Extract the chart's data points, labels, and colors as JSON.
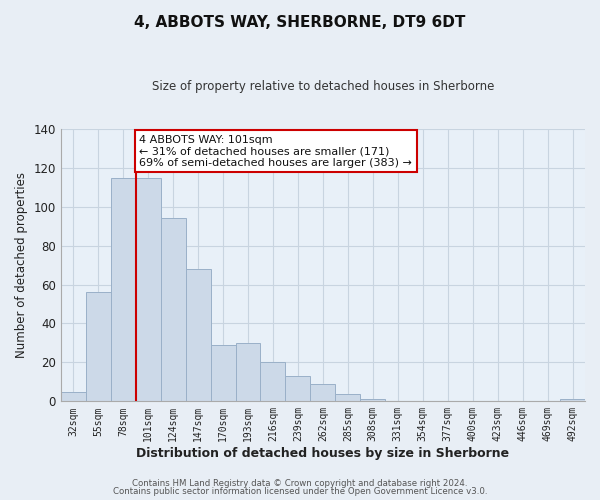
{
  "title": "4, ABBOTS WAY, SHERBORNE, DT9 6DT",
  "subtitle": "Size of property relative to detached houses in Sherborne",
  "xlabel": "Distribution of detached houses by size in Sherborne",
  "ylabel": "Number of detached properties",
  "bar_labels": [
    "32sqm",
    "55sqm",
    "78sqm",
    "101sqm",
    "124sqm",
    "147sqm",
    "170sqm",
    "193sqm",
    "216sqm",
    "239sqm",
    "262sqm",
    "285sqm",
    "308sqm",
    "331sqm",
    "354sqm",
    "377sqm",
    "400sqm",
    "423sqm",
    "446sqm",
    "469sqm",
    "492sqm"
  ],
  "bar_values": [
    5,
    56,
    115,
    115,
    94,
    68,
    29,
    30,
    20,
    13,
    9,
    4,
    1,
    0,
    0,
    0,
    0,
    0,
    0,
    0,
    1
  ],
  "bar_color": "#ccd9e8",
  "bar_edge_color": "#9ab0c8",
  "vline_x_index": 3,
  "vline_color": "#cc0000",
  "ylim": [
    0,
    140
  ],
  "yticks": [
    0,
    20,
    40,
    60,
    80,
    100,
    120,
    140
  ],
  "annotation_line1": "4 ABBOTS WAY: 101sqm",
  "annotation_line2": "← 31% of detached houses are smaller (171)",
  "annotation_line3": "69% of semi-detached houses are larger (383) →",
  "annotation_box_color": "#ffffff",
  "annotation_box_edge": "#cc0000",
  "footer_line1": "Contains HM Land Registry data © Crown copyright and database right 2024.",
  "footer_line2": "Contains public sector information licensed under the Open Government Licence v3.0.",
  "bg_color": "#e8eef5",
  "plot_bg_color": "#e8f0f8",
  "grid_color": "#c8d4e0"
}
